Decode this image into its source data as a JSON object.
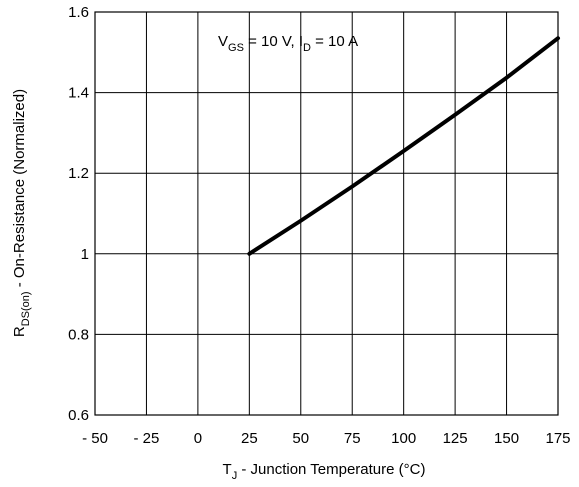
{
  "chart_data": {
    "type": "line",
    "title": "",
    "xlabel_parts": [
      "T",
      "J",
      " - Junction Temperature (°C)"
    ],
    "ylabel_parts": [
      "R",
      "DS(on)",
      " - On-Resistance  (Normalized)"
    ],
    "xlim": [
      -50,
      175
    ],
    "ylim": [
      0.6,
      1.6
    ],
    "x_ticks": [
      -50,
      -25,
      0,
      25,
      50,
      75,
      100,
      125,
      150,
      175
    ],
    "x_tick_labels": [
      "- 50",
      "- 25",
      "0",
      "25",
      "50",
      "75",
      "100",
      "125",
      "150",
      "175"
    ],
    "y_ticks": [
      0.6,
      0.8,
      1.0,
      1.2,
      1.4,
      1.6
    ],
    "y_tick_labels": [
      "0.6",
      "0.8",
      "1",
      "1.2",
      "1.4",
      "1.6"
    ],
    "grid": true,
    "annotation_parts": [
      "V",
      "GS",
      " = 10 V, I",
      "D",
      " =  10 A"
    ],
    "series": [
      {
        "x": [
          25,
          50,
          75,
          100,
          125,
          150,
          175
        ],
        "y": [
          1.0,
          1.082,
          1.167,
          1.255,
          1.345,
          1.437,
          1.535
        ]
      }
    ]
  }
}
